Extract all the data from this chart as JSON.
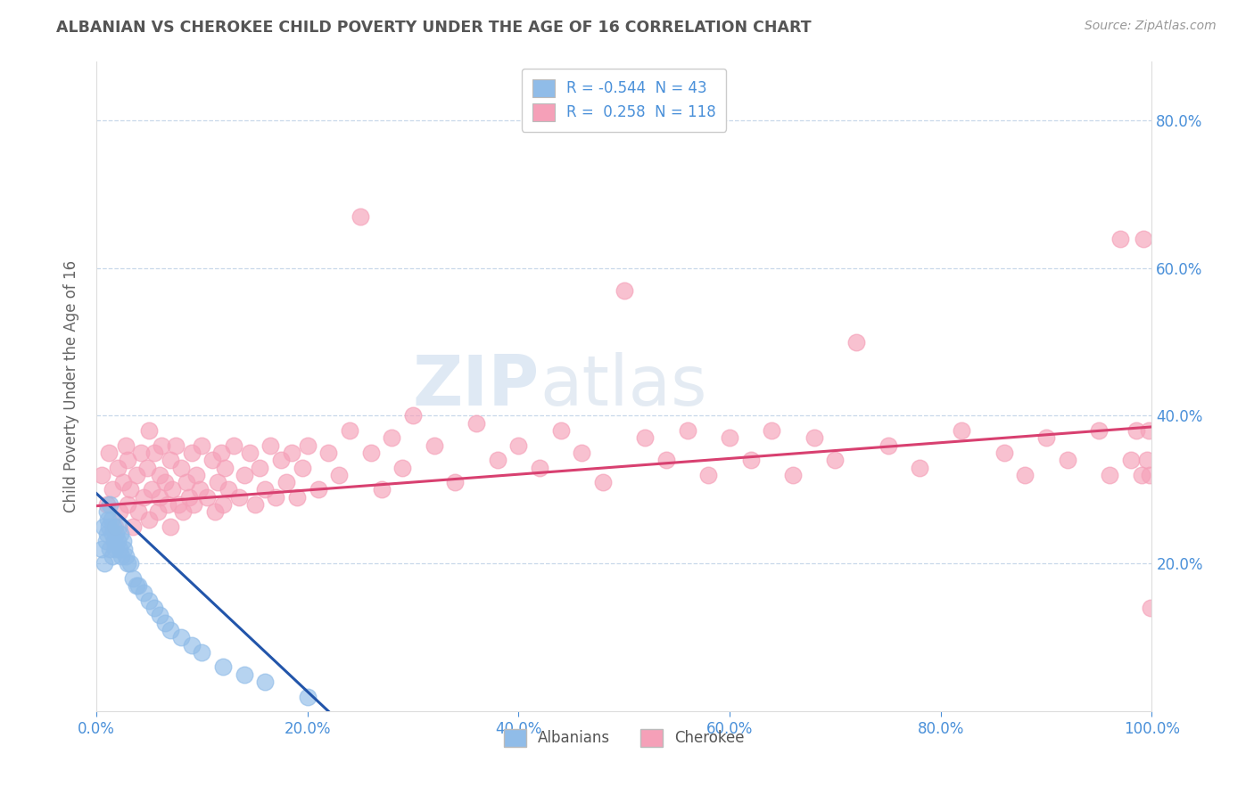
{
  "title": "ALBANIAN VS CHEROKEE CHILD POVERTY UNDER THE AGE OF 16 CORRELATION CHART",
  "source": "Source: ZipAtlas.com",
  "ylabel": "Child Poverty Under the Age of 16",
  "x_tick_labels": [
    "0.0%",
    "20.0%",
    "40.0%",
    "60.0%",
    "80.0%",
    "100.0%"
  ],
  "x_tick_vals": [
    0.0,
    0.2,
    0.4,
    0.6,
    0.8,
    1.0
  ],
  "y_tick_labels": [
    "20.0%",
    "40.0%",
    "60.0%",
    "80.0%"
  ],
  "y_tick_vals": [
    0.2,
    0.4,
    0.6,
    0.8
  ],
  "xlim": [
    0.0,
    1.0
  ],
  "ylim": [
    0.0,
    0.88
  ],
  "albanians_color": "#90bce8",
  "cherokee_color": "#f5a0b8",
  "line_albanian_color": "#2255aa",
  "line_cherokee_color": "#d84070",
  "legend_R_albanian": "-0.544",
  "legend_N_albanian": "43",
  "legend_R_cherokee": "0.258",
  "legend_N_cherokee": "118",
  "watermark_zip": "ZIP",
  "watermark_atlas": "atlas",
  "background_color": "#ffffff",
  "grid_color": "#c8d8ea",
  "alb_line_x0": 0.0,
  "alb_line_x1": 0.22,
  "alb_line_y0": 0.295,
  "alb_line_y1": 0.0,
  "cher_line_x0": 0.0,
  "cher_line_x1": 1.0,
  "cher_line_y0": 0.278,
  "cher_line_y1": 0.385,
  "albanians_x": [
    0.005,
    0.007,
    0.008,
    0.009,
    0.01,
    0.01,
    0.011,
    0.012,
    0.013,
    0.013,
    0.014,
    0.015,
    0.015,
    0.016,
    0.017,
    0.018,
    0.019,
    0.02,
    0.021,
    0.022,
    0.023,
    0.024,
    0.025,
    0.026,
    0.028,
    0.03,
    0.032,
    0.035,
    0.038,
    0.04,
    0.045,
    0.05,
    0.055,
    0.06,
    0.065,
    0.07,
    0.08,
    0.09,
    0.1,
    0.12,
    0.14,
    0.16,
    0.2
  ],
  "albanians_y": [
    0.22,
    0.25,
    0.2,
    0.23,
    0.27,
    0.24,
    0.26,
    0.25,
    0.28,
    0.22,
    0.26,
    0.24,
    0.21,
    0.25,
    0.23,
    0.22,
    0.24,
    0.23,
    0.25,
    0.22,
    0.24,
    0.21,
    0.23,
    0.22,
    0.21,
    0.2,
    0.2,
    0.18,
    0.17,
    0.17,
    0.16,
    0.15,
    0.14,
    0.13,
    0.12,
    0.11,
    0.1,
    0.09,
    0.08,
    0.06,
    0.05,
    0.04,
    0.02
  ],
  "cherokee_x": [
    0.005,
    0.01,
    0.012,
    0.015,
    0.018,
    0.02,
    0.022,
    0.025,
    0.028,
    0.03,
    0.03,
    0.032,
    0.035,
    0.038,
    0.04,
    0.042,
    0.045,
    0.048,
    0.05,
    0.05,
    0.052,
    0.055,
    0.058,
    0.06,
    0.06,
    0.062,
    0.065,
    0.068,
    0.07,
    0.07,
    0.072,
    0.075,
    0.078,
    0.08,
    0.082,
    0.085,
    0.088,
    0.09,
    0.092,
    0.095,
    0.098,
    0.1,
    0.105,
    0.11,
    0.112,
    0.115,
    0.118,
    0.12,
    0.122,
    0.125,
    0.13,
    0.135,
    0.14,
    0.145,
    0.15,
    0.155,
    0.16,
    0.165,
    0.17,
    0.175,
    0.18,
    0.185,
    0.19,
    0.195,
    0.2,
    0.21,
    0.22,
    0.23,
    0.24,
    0.25,
    0.26,
    0.27,
    0.28,
    0.29,
    0.3,
    0.32,
    0.34,
    0.36,
    0.38,
    0.4,
    0.42,
    0.44,
    0.46,
    0.48,
    0.5,
    0.52,
    0.54,
    0.56,
    0.58,
    0.6,
    0.62,
    0.64,
    0.66,
    0.68,
    0.7,
    0.72,
    0.75,
    0.78,
    0.82,
    0.86,
    0.88,
    0.9,
    0.92,
    0.95,
    0.96,
    0.97,
    0.98,
    0.985,
    0.99,
    0.992,
    0.995,
    0.997,
    0.998,
    0.999
  ],
  "cherokee_y": [
    0.32,
    0.28,
    0.35,
    0.3,
    0.25,
    0.33,
    0.27,
    0.31,
    0.36,
    0.28,
    0.34,
    0.3,
    0.25,
    0.32,
    0.27,
    0.35,
    0.29,
    0.33,
    0.26,
    0.38,
    0.3,
    0.35,
    0.27,
    0.32,
    0.29,
    0.36,
    0.31,
    0.28,
    0.34,
    0.25,
    0.3,
    0.36,
    0.28,
    0.33,
    0.27,
    0.31,
    0.29,
    0.35,
    0.28,
    0.32,
    0.3,
    0.36,
    0.29,
    0.34,
    0.27,
    0.31,
    0.35,
    0.28,
    0.33,
    0.3,
    0.36,
    0.29,
    0.32,
    0.35,
    0.28,
    0.33,
    0.3,
    0.36,
    0.29,
    0.34,
    0.31,
    0.35,
    0.29,
    0.33,
    0.36,
    0.3,
    0.35,
    0.32,
    0.38,
    0.67,
    0.35,
    0.3,
    0.37,
    0.33,
    0.4,
    0.36,
    0.31,
    0.39,
    0.34,
    0.36,
    0.33,
    0.38,
    0.35,
    0.31,
    0.57,
    0.37,
    0.34,
    0.38,
    0.32,
    0.37,
    0.34,
    0.38,
    0.32,
    0.37,
    0.34,
    0.5,
    0.36,
    0.33,
    0.38,
    0.35,
    0.32,
    0.37,
    0.34,
    0.38,
    0.32,
    0.64,
    0.34,
    0.38,
    0.32,
    0.64,
    0.34,
    0.38,
    0.32,
    0.14
  ]
}
